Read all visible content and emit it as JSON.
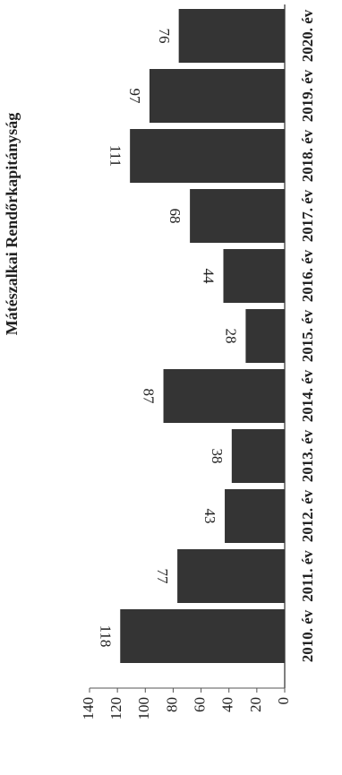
{
  "chart_data": {
    "type": "bar",
    "title": "Mátészalkai Rendőrkapitányság",
    "categories": [
      "2010. év",
      "2011. év",
      "2012. év",
      "2013. év",
      "2014. év",
      "2015. év",
      "2016. év",
      "2017. év",
      "2018. év",
      "2019. év",
      "2020. év"
    ],
    "values": [
      118,
      77,
      43,
      38,
      87,
      28,
      44,
      68,
      111,
      97,
      76
    ],
    "color": "#343434",
    "ylim": [
      0,
      140
    ],
    "yticks": [
      0,
      20,
      40,
      60,
      80,
      100,
      120,
      140
    ],
    "grid": false
  }
}
